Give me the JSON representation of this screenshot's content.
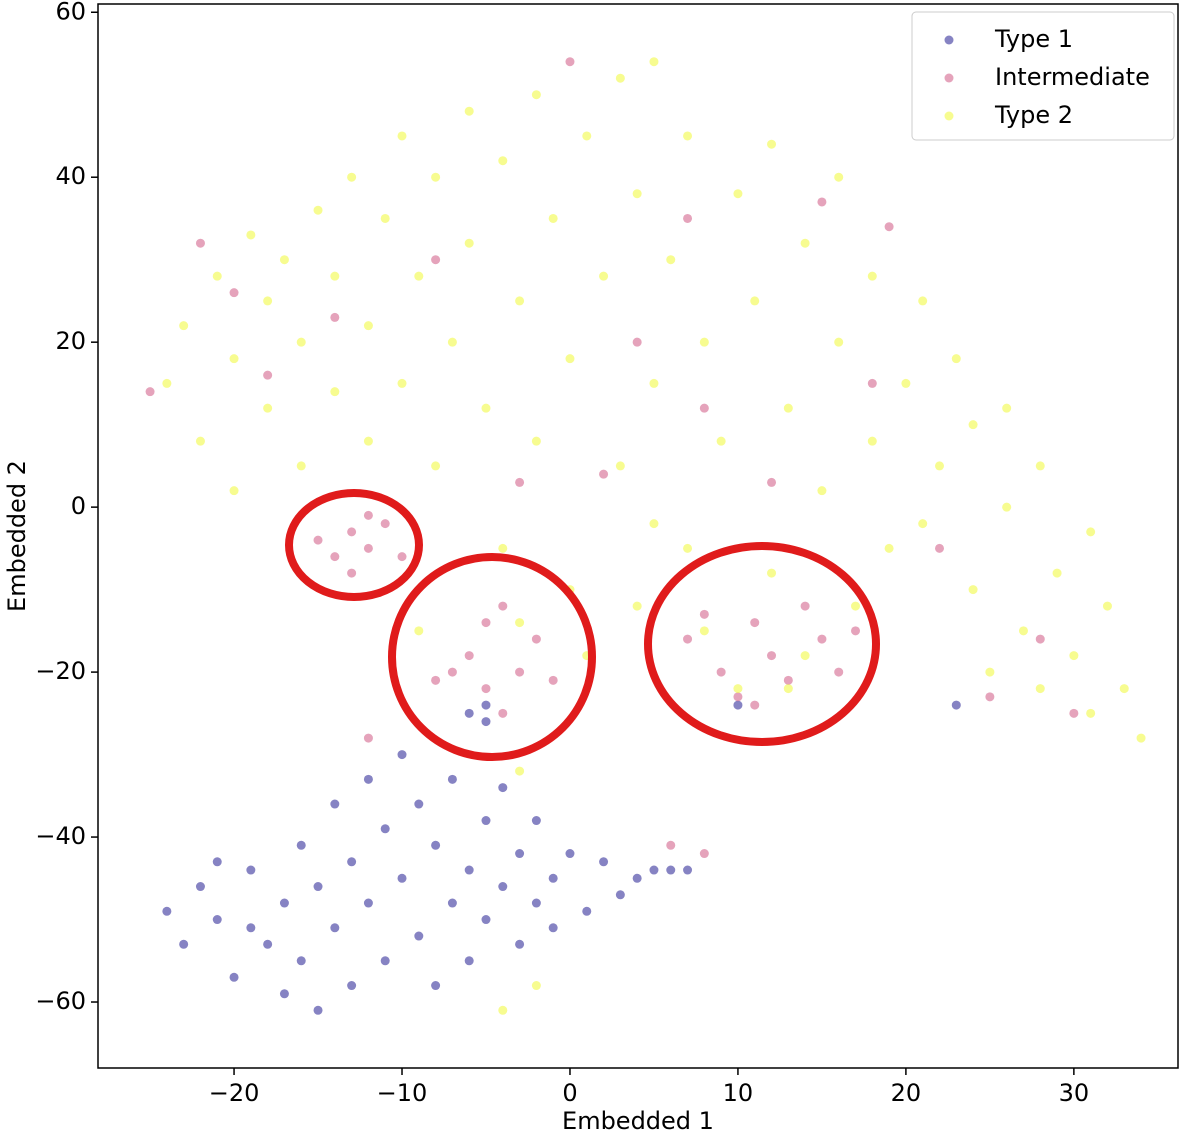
{
  "chart_data": {
    "type": "scatter",
    "xlabel": "Embedded 1",
    "ylabel": "Embedded 2",
    "xlim": [
      -28.1,
      36.2
    ],
    "ylim": [
      -68,
      61
    ],
    "xticks": [
      {
        "value": -20,
        "label": "−20"
      },
      {
        "value": -10,
        "label": "−10"
      },
      0,
      10,
      20,
      30
    ],
    "yticks": [
      {
        "value": -60,
        "label": "−60"
      },
      {
        "value": -40,
        "label": "−40"
      },
      {
        "value": -20,
        "label": "−20"
      },
      0,
      20,
      40,
      60
    ],
    "legend": "upper right",
    "grid": false,
    "series": [
      {
        "name": "Type 1",
        "color": "#0d0887",
        "x": [
          -24,
          -23,
          -22,
          -21,
          -20,
          -19,
          -18,
          -17,
          -17,
          -16,
          -16,
          -15,
          -15,
          -14,
          -14,
          -13,
          -13,
          -12,
          -12,
          -11,
          -11,
          -10,
          -10,
          -9,
          -9,
          -8,
          -8,
          -7,
          -7,
          -6,
          -6,
          -5,
          -5,
          -4,
          -4,
          -3,
          -3,
          -2,
          -2,
          -1,
          -1,
          0,
          1,
          2,
          3,
          4,
          5,
          6,
          7,
          -6,
          -5,
          -5,
          10,
          23,
          -19,
          -21
        ],
        "y": [
          -49,
          -53,
          -46,
          -50,
          -57,
          -44,
          -53,
          -59,
          -48,
          -41,
          -55,
          -61,
          -46,
          -36,
          -51,
          -43,
          -58,
          -33,
          -48,
          -39,
          -55,
          -30,
          -45,
          -52,
          -36,
          -41,
          -58,
          -48,
          -33,
          -44,
          -55,
          -38,
          -50,
          -46,
          -34,
          -42,
          -53,
          -48,
          -38,
          -45,
          -51,
          -42,
          -49,
          -43,
          -47,
          -45,
          -44,
          -44,
          -44,
          -25,
          -26,
          -24,
          -24,
          -24,
          -51,
          -43
        ]
      },
      {
        "name": "Intermediate",
        "color": "#cc4778",
        "x": [
          -13,
          -12,
          -14,
          -11,
          -13,
          -12,
          -15,
          -10,
          -6,
          -5,
          -4,
          -3,
          -7,
          -2,
          -5,
          -4,
          -8,
          -1,
          7,
          9,
          11,
          12,
          10,
          13,
          15,
          14,
          16,
          8,
          11,
          17,
          -25,
          -22,
          -20,
          -18,
          -14,
          -8,
          -3,
          2,
          0,
          4,
          7,
          8,
          12,
          15,
          18,
          19,
          22,
          25,
          28,
          30,
          -12,
          6,
          8
        ],
        "y": [
          -3,
          -5,
          -6,
          -2,
          -8,
          -1,
          -4,
          -6,
          -18,
          -22,
          -12,
          -20,
          -20,
          -16,
          -14,
          -25,
          -21,
          -21,
          -16,
          -20,
          -14,
          -18,
          -23,
          -21,
          -16,
          -12,
          -20,
          -13,
          -24,
          -15,
          14,
          32,
          26,
          16,
          23,
          30,
          3,
          4,
          54,
          20,
          35,
          12,
          3,
          37,
          15,
          34,
          -5,
          -23,
          -16,
          -25,
          -28,
          -41,
          -42
        ]
      },
      {
        "name": "Type 2",
        "color": "#f0f921",
        "x": [
          -24,
          -23,
          -22,
          -21,
          -20,
          -20,
          -19,
          -18,
          -18,
          -17,
          -16,
          -16,
          -15,
          -14,
          -14,
          -13,
          -12,
          -12,
          -11,
          -10,
          -10,
          -9,
          -8,
          -8,
          -7,
          -6,
          -6,
          -5,
          -4,
          -4,
          -3,
          -2,
          -2,
          -1,
          0,
          0,
          1,
          1,
          2,
          3,
          3,
          4,
          4,
          5,
          5,
          6,
          7,
          7,
          8,
          8,
          9,
          10,
          10,
          11,
          12,
          12,
          13,
          14,
          14,
          15,
          16,
          16,
          17,
          18,
          18,
          19,
          20,
          21,
          21,
          22,
          23,
          24,
          24,
          25,
          26,
          26,
          27,
          28,
          28,
          29,
          30,
          31,
          31,
          32,
          33,
          34,
          -3,
          5,
          13,
          -9,
          -2,
          -4,
          -3
        ],
        "y": [
          15,
          22,
          8,
          28,
          18,
          2,
          33,
          25,
          12,
          30,
          5,
          20,
          36,
          28,
          14,
          40,
          22,
          8,
          35,
          45,
          15,
          28,
          40,
          5,
          20,
          48,
          32,
          12,
          42,
          -5,
          25,
          50,
          8,
          35,
          -10,
          18,
          45,
          -18,
          28,
          52,
          5,
          38,
          -12,
          54,
          15,
          30,
          45,
          -5,
          20,
          -15,
          8,
          38,
          -22,
          25,
          -8,
          44,
          12,
          -18,
          32,
          2,
          40,
          20,
          -12,
          28,
          8,
          -5,
          15,
          25,
          -2,
          5,
          18,
          -10,
          10,
          -20,
          0,
          12,
          -15,
          5,
          -22,
          -8,
          -18,
          -3,
          -25,
          -12,
          -22,
          -28,
          -14,
          -2,
          -22,
          -15,
          -58,
          -61,
          -32
        ]
      }
    ]
  }
}
